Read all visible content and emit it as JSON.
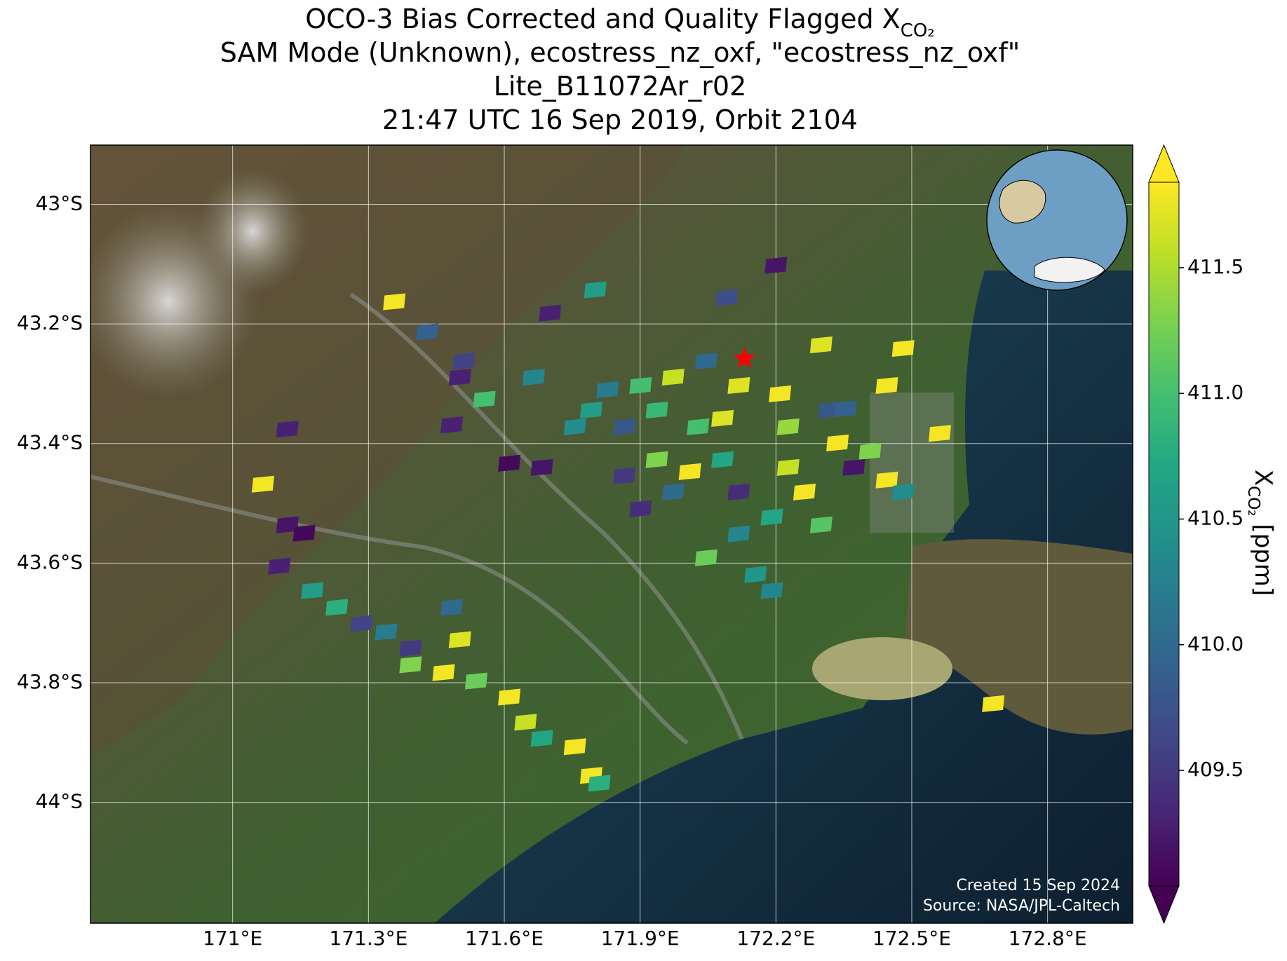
{
  "chart_data": {
    "type": "map",
    "title": [
      "OCO-3 Bias Corrected and Quality Flagged X",
      "SAM Mode (Unknown), ecostress_nz_oxf, \"ecostress_nz_oxf\"",
      "Lite_B11072Ar_r02",
      "21:47 UTC 16 Sep 2019, Orbit 2104"
    ],
    "title_subscript": "CO₂",
    "xlim": [
      170.686,
      172.988
    ],
    "ylim": [
      -44.202,
      -42.901
    ],
    "xticks": [
      {
        "value": 171,
        "label": "171°E"
      },
      {
        "value": 171.3,
        "label": "171.3°E"
      },
      {
        "value": 171.6,
        "label": "171.6°E"
      },
      {
        "value": 171.9,
        "label": "171.9°E"
      },
      {
        "value": 172.2,
        "label": "172.2°E"
      },
      {
        "value": 172.5,
        "label": "172.5°E"
      },
      {
        "value": 172.8,
        "label": "172.8°E"
      }
    ],
    "yticks": [
      {
        "value": -43,
        "label": "43°S"
      },
      {
        "value": -43.2,
        "label": "43.2°S"
      },
      {
        "value": -43.4,
        "label": "43.4°S"
      },
      {
        "value": -43.6,
        "label": "43.6°S"
      },
      {
        "value": -43.8,
        "label": "43.8°S"
      },
      {
        "value": -44,
        "label": "44°S"
      }
    ],
    "grid": true,
    "colormap": "viridis",
    "x": [
      171.067,
      171.121,
      171.158,
      171.103,
      171.176,
      171.23,
      171.285,
      171.339,
      171.393,
      171.484,
      171.502,
      171.466,
      171.538,
      171.611,
      171.647,
      171.683,
      171.756,
      171.792,
      171.81,
      171.393,
      171.611,
      171.683,
      171.756,
      171.828,
      171.901,
      171.973,
      172.046,
      172.118,
      172.209,
      172.3,
      172.481,
      172.445,
      172.318,
      172.227,
      172.336,
      172.408,
      172.372,
      172.445,
      172.481,
      172.263,
      172.3,
      172.191,
      172.118,
      172.046,
      172.155,
      172.191,
      171.973,
      171.901,
      171.865,
      171.937,
      172.01,
      172.082,
      172.118,
      172.227,
      171.792,
      171.865,
      171.937,
      172.028,
      172.082,
      171.357,
      171.43,
      171.511,
      171.502,
      171.556,
      171.484,
      171.121,
      171.801,
      171.701,
      172.2,
      172.091,
      172.68,
      172.562,
      172.354,
      171.665
    ],
    "y": [
      -43.468,
      -43.536,
      -43.55,
      -43.605,
      -43.646,
      -43.674,
      -43.701,
      -43.715,
      -43.742,
      -43.674,
      -43.728,
      -43.783,
      -43.797,
      -43.824,
      -43.866,
      -43.893,
      -43.907,
      -43.955,
      -43.968,
      -43.77,
      -43.433,
      -43.44,
      -43.372,
      -43.31,
      -43.303,
      -43.289,
      -43.262,
      -43.303,
      -43.317,
      -43.235,
      -43.241,
      -43.303,
      -43.344,
      -43.372,
      -43.399,
      -43.413,
      -43.44,
      -43.461,
      -43.481,
      -43.481,
      -43.536,
      -43.523,
      -43.551,
      -43.591,
      -43.619,
      -43.646,
      -43.481,
      -43.509,
      -43.454,
      -43.427,
      -43.447,
      -43.427,
      -43.481,
      -43.44,
      -43.344,
      -43.372,
      -43.344,
      -43.372,
      -43.358,
      -43.163,
      -43.213,
      -43.262,
      -43.289,
      -43.326,
      -43.369,
      -43.376,
      -43.143,
      -43.182,
      -43.102,
      -43.156,
      -43.835,
      -43.383,
      -43.342,
      -43.289
    ],
    "values": [
      411.8,
      409.2,
      409.1,
      409.3,
      410.6,
      410.8,
      409.6,
      410.2,
      409.5,
      410.0,
      411.7,
      411.8,
      411.2,
      411.8,
      411.6,
      410.7,
      411.8,
      411.8,
      410.8,
      411.3,
      409.1,
      409.2,
      410.4,
      410.2,
      411.0,
      411.6,
      410.0,
      411.7,
      411.8,
      411.7,
      411.8,
      411.8,
      409.8,
      411.4,
      411.8,
      411.3,
      409.2,
      411.8,
      410.4,
      411.8,
      411.1,
      410.7,
      410.3,
      411.2,
      410.5,
      410.3,
      410.0,
      409.4,
      409.5,
      411.3,
      411.8,
      410.7,
      409.4,
      411.6,
      410.6,
      409.8,
      410.9,
      411.0,
      411.7,
      411.8,
      409.9,
      409.6,
      409.3,
      411.0,
      409.3,
      409.3,
      410.6,
      409.3,
      409.2,
      409.7,
      411.8,
      411.8,
      409.9,
      410.3
    ],
    "target": {
      "x": 172.131,
      "y": -43.258
    },
    "colorbar": {
      "lim": [
        409.04,
        411.84
      ],
      "ticks": [
        409.5,
        {
          "value": 410,
          "label": "410.0"
        },
        410.5,
        {
          "value": 411,
          "label": "411.0"
        },
        411.5
      ],
      "label": "X",
      "label_subscript": "CO₂",
      "label_unit": "[ppm]"
    },
    "annotations": [
      "Created 15 Sep 2024",
      "Source: NASA/JPL-Caltech"
    ]
  }
}
